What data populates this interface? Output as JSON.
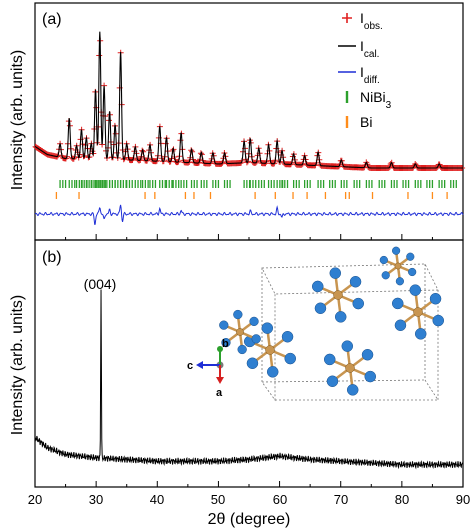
{
  "figure": {
    "x_axis_label": "2θ (degree)",
    "x_ticks": [
      "20",
      "30",
      "40",
      "50",
      "60",
      "70",
      "80",
      "90"
    ]
  },
  "chart_data": [
    {
      "panel": "(a)",
      "type": "line",
      "xlabel": "2θ (degree)",
      "ylabel": "Intensity (arb. units)",
      "xlim": [
        20,
        90
      ],
      "legend_position": "top-right",
      "legend": [
        {
          "name": "I",
          "sub": "obs.",
          "color": "#e02020",
          "marker": "plus"
        },
        {
          "name": "I",
          "sub": "cal.",
          "color": "#000000",
          "marker": "line"
        },
        {
          "name": "I",
          "sub": "diff.",
          "color": "#1f2fd6",
          "marker": "line"
        },
        {
          "name": "NiBi",
          "sub": "3",
          "color": "#2ca02c",
          "marker": "bar"
        },
        {
          "name": "Bi",
          "sub": "",
          "color": "#ff8c1a",
          "marker": "bar"
        }
      ],
      "baseline_profile": [
        [
          20,
          0.26
        ],
        [
          22,
          0.2
        ],
        [
          25,
          0.17
        ],
        [
          30,
          0.16
        ],
        [
          35,
          0.16
        ],
        [
          40,
          0.15
        ],
        [
          45,
          0.14
        ],
        [
          50,
          0.13
        ],
        [
          55,
          0.14
        ],
        [
          60,
          0.13
        ],
        [
          65,
          0.12
        ],
        [
          70,
          0.11
        ],
        [
          75,
          0.1
        ],
        [
          80,
          0.1
        ],
        [
          85,
          0.1
        ],
        [
          90,
          0.1
        ]
      ],
      "peaks": [
        [
          24.1,
          0.1
        ],
        [
          25.6,
          0.3
        ],
        [
          26.8,
          0.1
        ],
        [
          27.6,
          0.22
        ],
        [
          28.4,
          0.16
        ],
        [
          29.2,
          0.12
        ],
        [
          29.9,
          0.52
        ],
        [
          30.6,
          0.95
        ],
        [
          31.3,
          0.55
        ],
        [
          32.2,
          0.36
        ],
        [
          33.1,
          0.26
        ],
        [
          34.0,
          0.8
        ],
        [
          35.0,
          0.12
        ],
        [
          36.4,
          0.1
        ],
        [
          37.6,
          0.08
        ],
        [
          38.8,
          0.12
        ],
        [
          40.4,
          0.26
        ],
        [
          41.5,
          0.18
        ],
        [
          42.6,
          0.1
        ],
        [
          43.9,
          0.22
        ],
        [
          45.6,
          0.1
        ],
        [
          47.2,
          0.08
        ],
        [
          49.1,
          0.08
        ],
        [
          51.0,
          0.08
        ],
        [
          54.2,
          0.16
        ],
        [
          55.2,
          0.18
        ],
        [
          56.6,
          0.11
        ],
        [
          58.2,
          0.14
        ],
        [
          59.6,
          0.17
        ],
        [
          60.4,
          0.1
        ],
        [
          62.3,
          0.08
        ],
        [
          64.1,
          0.07
        ],
        [
          66.3,
          0.1
        ],
        [
          70.1,
          0.05
        ],
        [
          74.2,
          0.04
        ],
        [
          78.3,
          0.04
        ],
        [
          82.2,
          0.03
        ],
        [
          86.1,
          0.03
        ]
      ],
      "diff_spikes": [
        [
          29.8,
          -0.9
        ],
        [
          30.6,
          0.6
        ],
        [
          31.3,
          -0.5
        ],
        [
          32.2,
          0.35
        ],
        [
          34.0,
          0.8
        ],
        [
          34.3,
          -0.6
        ],
        [
          40.4,
          0.45
        ],
        [
          43.9,
          0.3
        ],
        [
          55.2,
          0.25
        ],
        [
          59.6,
          0.45
        ],
        [
          60.4,
          -0.3
        ]
      ],
      "nibi3_ticks": [
        24.1,
        25.6,
        26.8,
        27.6,
        28.4,
        29.2,
        29.9,
        30.6,
        31.3,
        32.2,
        33.1,
        34.0,
        35.0,
        36.4,
        37.6,
        38.8,
        40.4,
        41.5,
        42.6,
        43.9,
        45.6,
        47.2,
        49.1,
        51.0,
        54.2,
        55.2,
        56.6,
        58.2,
        59.6,
        60.4,
        62.3,
        64.1,
        66.3,
        68.2,
        70.1,
        72.2,
        74.2,
        76.3,
        78.3,
        80.2,
        82.2,
        84.1,
        86.1,
        88.0
      ],
      "bi_ticks": [
        23.5,
        27.2,
        38.0,
        39.6,
        44.6,
        46.0,
        48.7,
        56.0,
        59.3,
        62.2,
        64.5,
        67.5,
        70.8,
        71.4,
        75.2,
        81.0,
        85.0,
        87.4
      ]
    },
    {
      "panel": "(b)",
      "type": "line",
      "xlabel": "2θ (degree)",
      "ylabel": "Intensity (arb. units)",
      "xlim": [
        20,
        90
      ],
      "annotation": "(004)",
      "peak": [
        30.8,
        1.0
      ],
      "background": [
        [
          20,
          0.18
        ],
        [
          22,
          0.12
        ],
        [
          25,
          0.08
        ],
        [
          30,
          0.06
        ],
        [
          35,
          0.05
        ],
        [
          40,
          0.04
        ],
        [
          45,
          0.04
        ],
        [
          50,
          0.04
        ],
        [
          55,
          0.05
        ],
        [
          60,
          0.07
        ],
        [
          65,
          0.05
        ],
        [
          70,
          0.04
        ],
        [
          75,
          0.03
        ],
        [
          80,
          0.02
        ],
        [
          85,
          0.02
        ],
        [
          90,
          0.02
        ]
      ],
      "inset_axes": [
        "b",
        "c",
        "a"
      ],
      "inset_colors": {
        "ni": "#c89550",
        "bi": "#2f7fd0",
        "axis_b": "#2ca02c",
        "axis_c": "#1f2fd6",
        "axis_a": "#d62020"
      }
    }
  ]
}
